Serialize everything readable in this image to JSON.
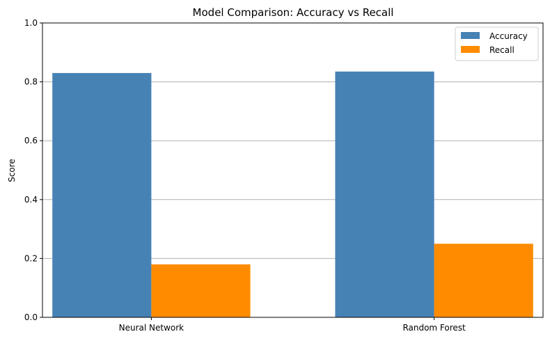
{
  "chart_data": {
    "type": "bar",
    "title": "Model Comparison: Accuracy vs Recall",
    "xlabel": "",
    "ylabel": "Score",
    "categories": [
      "Neural Network",
      "Random Forest"
    ],
    "series": [
      {
        "name": "Accuracy",
        "values": [
          0.83,
          0.835
        ],
        "color": "#4682b4"
      },
      {
        "name": "Recall",
        "values": [
          0.18,
          0.25
        ],
        "color": "#ff8c00"
      }
    ],
    "ylim": [
      0,
      1.0
    ],
    "yticks": [
      "0.0",
      "0.2",
      "0.4",
      "0.6",
      "0.8",
      "1.0"
    ],
    "grid": "y-major",
    "legend_position": "top-right"
  }
}
